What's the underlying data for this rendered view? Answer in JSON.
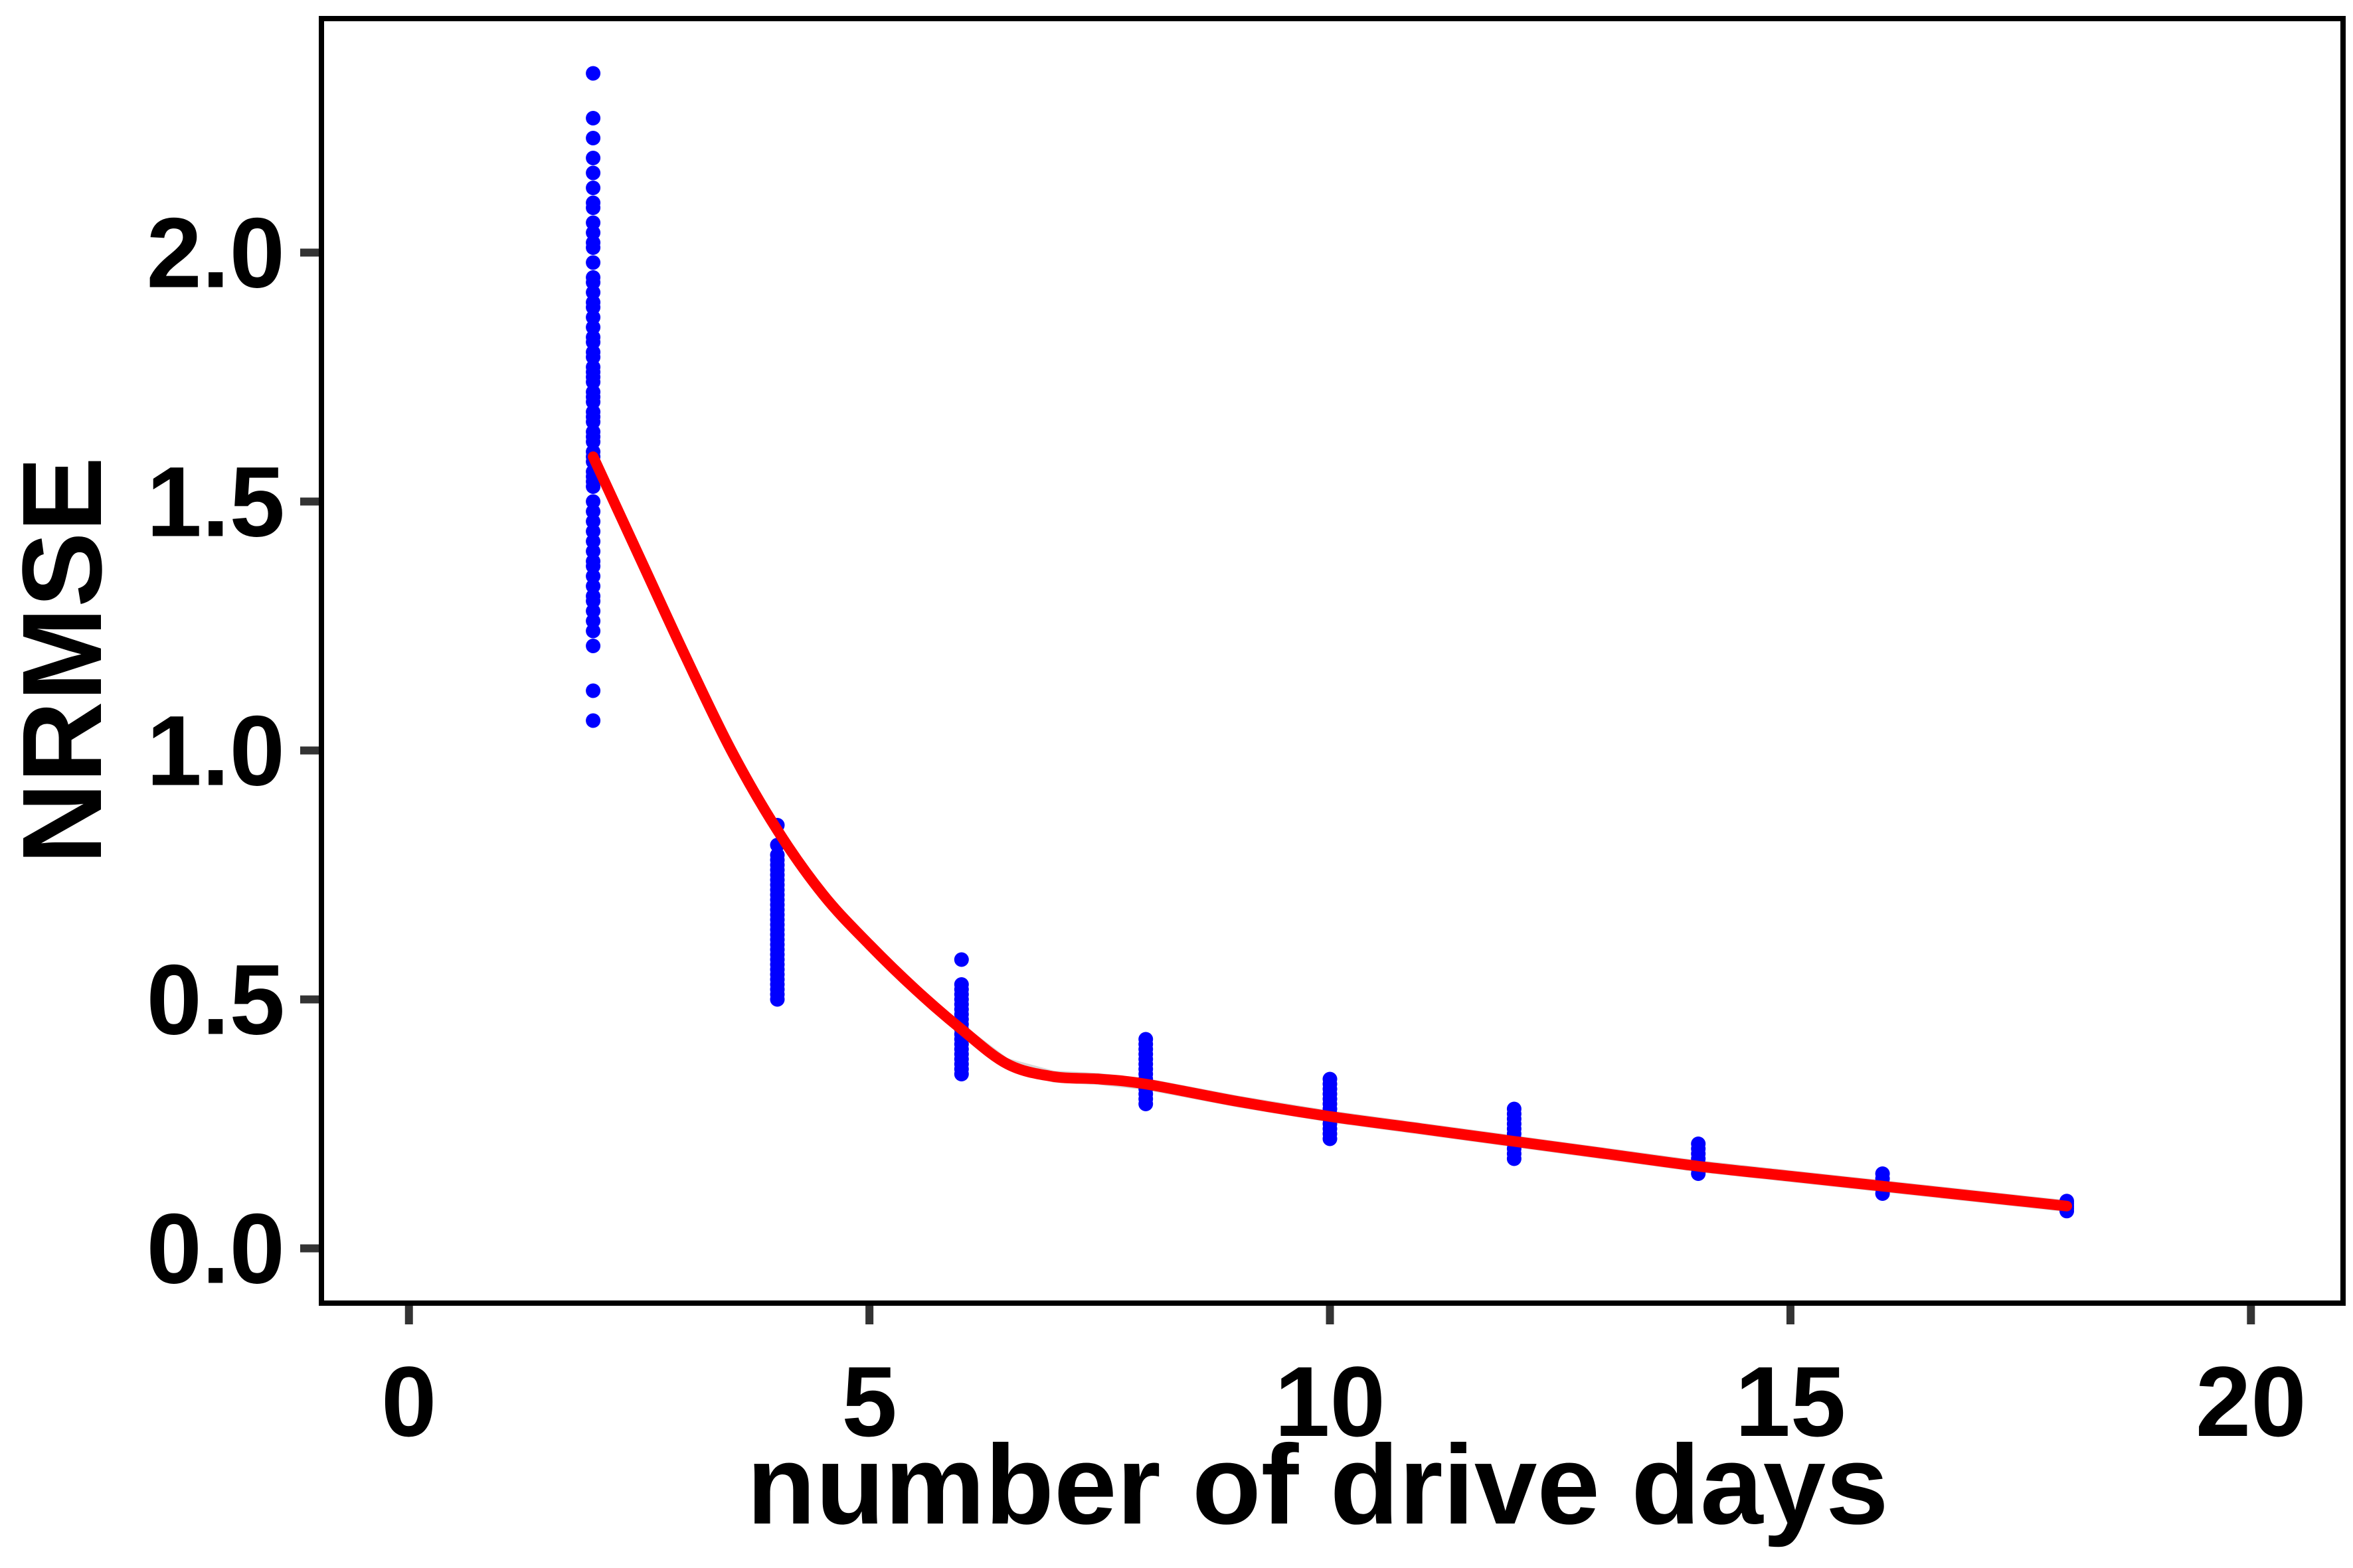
{
  "chart_data": {
    "type": "scatter",
    "title": "",
    "xlabel": "number of drive days",
    "ylabel": "NRMSE",
    "xlim": [
      -0.95,
      21.0
    ],
    "ylim": [
      -0.11,
      2.47
    ],
    "xticks": [
      0,
      5,
      10,
      15,
      20
    ],
    "xtick_labels": [
      "0",
      "5",
      "10",
      "15",
      "20"
    ],
    "yticks": [
      0.0,
      0.5,
      1.0,
      1.5,
      2.0
    ],
    "ytick_labels": [
      "0.0",
      "0.5",
      "1.0",
      "1.5",
      "2.0"
    ],
    "grid": false,
    "legend": "none",
    "colors": {
      "points": "#0000ff",
      "smooth_line": "#ff0000",
      "ribbon": "#bdbdbd",
      "frame": "#000000",
      "tick_marks": "#333333"
    },
    "point_groups": [
      {
        "x": 2,
        "y": [
          2.36,
          2.27,
          2.23,
          2.19,
          2.16,
          2.13,
          2.1,
          2.09,
          2.06,
          2.04,
          2.02,
          2.01,
          1.98,
          1.95,
          1.94,
          1.92,
          1.9,
          1.89,
          1.87,
          1.85,
          1.83,
          1.82,
          1.8,
          1.79,
          1.77,
          1.76,
          1.75,
          1.74,
          1.72,
          1.71,
          1.7,
          1.68,
          1.67,
          1.66,
          1.64,
          1.63,
          1.62,
          1.6,
          1.59,
          1.58,
          1.56,
          1.55,
          1.54,
          1.53,
          1.5,
          1.48,
          1.46,
          1.44,
          1.42,
          1.4,
          1.38,
          1.37,
          1.35,
          1.33,
          1.31,
          1.3,
          1.28,
          1.26,
          1.24,
          1.21,
          1.12,
          1.06
        ]
      },
      {
        "x": 4,
        "y": [
          0.85,
          0.81,
          0.79,
          0.78,
          0.77,
          0.76,
          0.75,
          0.74,
          0.73,
          0.72,
          0.71,
          0.7,
          0.69,
          0.68,
          0.67,
          0.66,
          0.65,
          0.64,
          0.63,
          0.62,
          0.61,
          0.6,
          0.59,
          0.58,
          0.57,
          0.56,
          0.55,
          0.54,
          0.53,
          0.52,
          0.51,
          0.5
        ]
      },
      {
        "x": 6,
        "y": [
          0.58,
          0.53,
          0.52,
          0.51,
          0.5,
          0.49,
          0.48,
          0.47,
          0.46,
          0.45,
          0.44,
          0.43,
          0.42,
          0.41,
          0.4,
          0.39,
          0.38,
          0.37,
          0.36,
          0.35
        ]
      },
      {
        "x": 8,
        "y": [
          0.42,
          0.41,
          0.4,
          0.39,
          0.38,
          0.37,
          0.36,
          0.35,
          0.34,
          0.33,
          0.32,
          0.31,
          0.3,
          0.29
        ]
      },
      {
        "x": 10,
        "y": [
          0.34,
          0.33,
          0.32,
          0.31,
          0.3,
          0.29,
          0.28,
          0.27,
          0.26,
          0.25,
          0.24,
          0.23,
          0.22
        ]
      },
      {
        "x": 12,
        "y": [
          0.28,
          0.27,
          0.26,
          0.25,
          0.24,
          0.23,
          0.22,
          0.21,
          0.2,
          0.19,
          0.18
        ]
      },
      {
        "x": 14,
        "y": [
          0.21,
          0.2,
          0.19,
          0.18,
          0.17,
          0.16,
          0.15
        ]
      },
      {
        "x": 16,
        "y": [
          0.15,
          0.14,
          0.13,
          0.12,
          0.11
        ]
      },
      {
        "x": 18,
        "y": [
          0.095,
          0.09,
          0.085,
          0.08,
          0.075
        ]
      }
    ],
    "smooth_line": {
      "x": [
        2,
        2.5,
        3,
        3.5,
        4,
        4.5,
        5,
        5.5,
        6,
        6.5,
        7,
        7.5,
        8,
        9,
        10,
        11,
        12,
        13,
        14,
        15,
        16,
        17,
        18
      ],
      "y": [
        1.59,
        1.39,
        1.19,
        1.0,
        0.84,
        0.71,
        0.61,
        0.52,
        0.44,
        0.37,
        0.345,
        0.34,
        0.33,
        0.295,
        0.265,
        0.24,
        0.215,
        0.19,
        0.165,
        0.145,
        0.125,
        0.105,
        0.085
      ]
    }
  }
}
